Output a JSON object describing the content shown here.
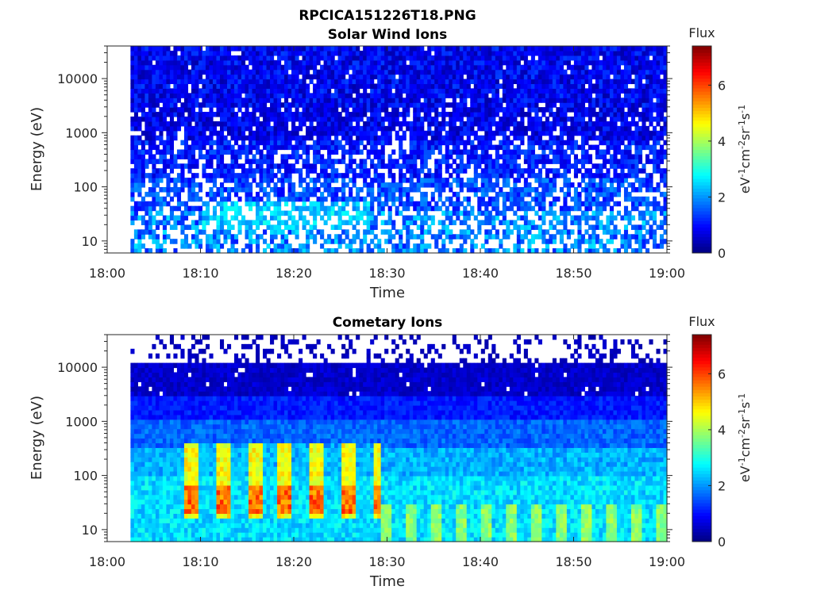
{
  "figure_title": "RPCICA151226T18.PNG",
  "chart_data": [
    {
      "type": "heatmap",
      "title": "Solar Wind Ions",
      "xlabel": "Time",
      "ylabel": "Energy (eV)",
      "x_range": [
        "18:00",
        "19:00"
      ],
      "x_ticks": [
        "18:00",
        "18:10",
        "18:20",
        "18:30",
        "18:40",
        "18:50",
        "19:00"
      ],
      "y_scale": "log",
      "y_range": [
        6,
        40000
      ],
      "y_ticks": [
        10,
        100,
        1000,
        10000
      ],
      "y_tick_labels": [
        "10",
        "100",
        "1000",
        "10000"
      ],
      "data_start_time": "18:02:30",
      "colorbar": {
        "title": "Flux",
        "label": "eV-1cm-2sr-1s-1",
        "range": [
          0,
          7.4
        ],
        "ticks": [
          "0",
          "2",
          "4",
          "6"
        ],
        "colormap": "jet"
      },
      "bands": [
        {
          "energy_range": [
            3000,
            40000
          ],
          "flux_range": [
            0.3,
            1.4
          ],
          "gap_fraction": 0.04
        },
        {
          "energy_range": [
            700,
            3000
          ],
          "flux_range": [
            0.3,
            1.3
          ],
          "gap_fraction": 0.15
        },
        {
          "energy_range": [
            150,
            700
          ],
          "flux_range": [
            0.6,
            1.6
          ],
          "gap_fraction": 0.25
        },
        {
          "energy_range": [
            40,
            150
          ],
          "flux_range": [
            0.9,
            2.0
          ],
          "gap_fraction": 0.32
        },
        {
          "energy_range": [
            6,
            40
          ],
          "flux_range": [
            1.1,
            2.6
          ],
          "gap_fraction": 0.4
        }
      ],
      "enhancements": [
        {
          "time_range": [
            "18:10",
            "18:28"
          ],
          "energy_range": [
            15,
            50
          ],
          "flux": 3.0
        }
      ]
    },
    {
      "type": "heatmap",
      "title": "Cometary Ions",
      "xlabel": "Time",
      "ylabel": "Energy (eV)",
      "x_range": [
        "18:00",
        "19:00"
      ],
      "x_ticks": [
        "18:00",
        "18:10",
        "18:20",
        "18:30",
        "18:40",
        "18:50",
        "19:00"
      ],
      "y_scale": "log",
      "y_range": [
        6,
        40000
      ],
      "y_ticks": [
        10,
        100,
        1000,
        10000
      ],
      "y_tick_labels": [
        "10",
        "100",
        "1000",
        "10000"
      ],
      "data_start_time": "18:02:30",
      "colorbar": {
        "title": "Flux",
        "label": "eV-1cm-2sr-1s-1",
        "range": [
          0,
          7.4
        ],
        "ticks": [
          "0",
          "2",
          "4",
          "6"
        ],
        "colormap": "jet"
      },
      "bands": [
        {
          "energy_range": [
            12000,
            40000
          ],
          "flux_range": [
            0.3,
            0.6
          ],
          "gap_fraction": 0.75
        },
        {
          "energy_range": [
            3000,
            12000
          ],
          "flux_range": [
            0.3,
            0.8
          ],
          "gap_fraction": 0.03
        },
        {
          "energy_range": [
            1000,
            3000
          ],
          "flux_range": [
            0.8,
            1.4
          ],
          "gap_fraction": 0.0
        },
        {
          "energy_range": [
            300,
            1000
          ],
          "flux_range": [
            1.3,
            2.0
          ],
          "gap_fraction": 0.0
        },
        {
          "energy_range": [
            100,
            300
          ],
          "flux_range": [
            1.8,
            2.6
          ],
          "gap_fraction": 0.0
        },
        {
          "energy_range": [
            6,
            100
          ],
          "flux_range": [
            2.1,
            3.0
          ],
          "gap_fraction": 0.0
        }
      ],
      "enhancements": [
        {
          "time_range": [
            "18:08",
            "18:29"
          ],
          "energy_range": [
            15,
            400
          ],
          "flux": 4.6,
          "peak_energy": 35,
          "peak_flux": 6.0,
          "pulse_period_min": 3.4
        },
        {
          "time_range": [
            "18:29",
            "19:00"
          ],
          "energy_range": [
            6,
            30
          ],
          "flux": 3.8,
          "pulse_period_min": 2.7
        }
      ]
    }
  ]
}
